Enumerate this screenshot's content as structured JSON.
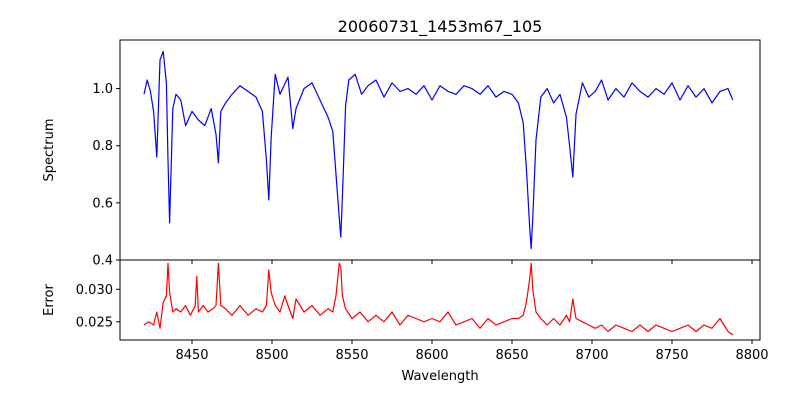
{
  "chart_data": [
    {
      "type": "line",
      "title": "20060731_1453m67_105",
      "xlabel": "",
      "ylabel": "Spectrum",
      "xlim": [
        8405,
        8805
      ],
      "ylim": [
        0.4,
        1.17
      ],
      "xticks": [
        8450,
        8500,
        8550,
        8600,
        8650,
        8700,
        8750,
        8800
      ],
      "yticks": [
        0.4,
        0.6,
        0.8,
        1.0
      ],
      "ytick_labels": [
        "0.4",
        "0.6",
        "0.8",
        "1.0"
      ],
      "series": [
        {
          "name": "Spectrum",
          "color": "#0000ff",
          "x": [
            8420,
            8422,
            8424,
            8426,
            8428,
            8430,
            8432,
            8434,
            8435,
            8436,
            8438,
            8440,
            8443,
            8446,
            8450,
            8454,
            8458,
            8462,
            8465,
            8466.5,
            8468,
            8471,
            8475,
            8480,
            8485,
            8490,
            8494,
            8496.5,
            8498,
            8499.5,
            8502,
            8505,
            8510,
            8513,
            8515,
            8520,
            8525,
            8530,
            8535,
            8538,
            8540,
            8542,
            8543,
            8544,
            8546,
            8548,
            8552,
            8556,
            8560,
            8565,
            8570,
            8575,
            8580,
            8585,
            8590,
            8595,
            8600,
            8605,
            8610,
            8615,
            8620,
            8625,
            8630,
            8635,
            8640,
            8645,
            8650,
            8654,
            8657,
            8659,
            8661,
            8662,
            8663,
            8665,
            8668,
            8672,
            8676,
            8680,
            8684,
            8686,
            8688,
            8690,
            8694,
            8698,
            8702,
            8706,
            8710,
            8715,
            8720,
            8725,
            8730,
            8735,
            8740,
            8745,
            8750,
            8755,
            8760,
            8765,
            8770,
            8775,
            8780,
            8785,
            8788
          ],
          "y": [
            0.98,
            1.03,
            0.99,
            0.92,
            0.76,
            1.1,
            1.13,
            1.02,
            0.75,
            0.53,
            0.93,
            0.98,
            0.96,
            0.87,
            0.92,
            0.89,
            0.87,
            0.93,
            0.84,
            0.74,
            0.92,
            0.95,
            0.98,
            1.01,
            0.99,
            0.97,
            0.92,
            0.75,
            0.61,
            0.83,
            1.05,
            0.98,
            1.04,
            0.86,
            0.93,
            1.0,
            1.02,
            0.96,
            0.9,
            0.85,
            0.7,
            0.55,
            0.48,
            0.62,
            0.94,
            1.03,
            1.05,
            0.98,
            1.01,
            1.03,
            0.97,
            1.02,
            0.99,
            1.0,
            0.98,
            1.01,
            0.96,
            1.01,
            0.99,
            0.98,
            1.01,
            1.0,
            0.98,
            1.01,
            0.97,
            0.99,
            0.98,
            0.95,
            0.88,
            0.72,
            0.52,
            0.44,
            0.55,
            0.82,
            0.97,
            1.0,
            0.95,
            0.98,
            0.9,
            0.8,
            0.69,
            0.91,
            1.02,
            0.97,
            0.99,
            1.03,
            0.96,
            1.0,
            0.97,
            1.02,
            0.99,
            0.97,
            1.0,
            0.98,
            1.02,
            0.96,
            1.01,
            0.97,
            1.0,
            0.95,
            0.99,
            1.0,
            0.96
          ]
        }
      ]
    },
    {
      "type": "line",
      "title": "",
      "xlabel": "Wavelength",
      "ylabel": "Error",
      "xlim": [
        8405,
        8805
      ],
      "ylim": [
        0.0222,
        0.0345
      ],
      "xticks": [
        8450,
        8500,
        8550,
        8600,
        8650,
        8700,
        8750,
        8800
      ],
      "xtick_labels": [
        "8450",
        "8500",
        "8550",
        "8600",
        "8650",
        "8700",
        "8750",
        "8800"
      ],
      "yticks": [
        0.025,
        0.03
      ],
      "ytick_labels": [
        "0.025",
        "0.030"
      ],
      "series": [
        {
          "name": "Error",
          "color": "#ff0000",
          "x": [
            8420,
            8423,
            8426,
            8428,
            8430,
            8432,
            8434,
            8435,
            8436,
            8438,
            8440,
            8443,
            8446,
            8449,
            8452,
            8453,
            8454,
            8457,
            8460,
            8463,
            8465,
            8466.5,
            8468,
            8471,
            8475,
            8480,
            8485,
            8490,
            8494,
            8496.5,
            8498,
            8499.5,
            8502,
            8505,
            8508,
            8510,
            8513,
            8515,
            8520,
            8525,
            8530,
            8535,
            8538,
            8540,
            8542,
            8543,
            8544,
            8546,
            8550,
            8555,
            8560,
            8565,
            8570,
            8575,
            8580,
            8585,
            8590,
            8595,
            8600,
            8605,
            8610,
            8615,
            8620,
            8625,
            8630,
            8635,
            8640,
            8645,
            8650,
            8654,
            8657,
            8659,
            8661,
            8662,
            8663,
            8665,
            8668,
            8672,
            8676,
            8680,
            8684,
            8686,
            8688,
            8690,
            8694,
            8698,
            8702,
            8706,
            8710,
            8715,
            8720,
            8725,
            8730,
            8735,
            8740,
            8745,
            8750,
            8755,
            8760,
            8765,
            8770,
            8775,
            8780,
            8785,
            8788
          ],
          "y": [
            0.0245,
            0.025,
            0.0245,
            0.0265,
            0.024,
            0.028,
            0.029,
            0.034,
            0.0295,
            0.0265,
            0.027,
            0.0265,
            0.0275,
            0.026,
            0.0275,
            0.032,
            0.0265,
            0.0275,
            0.0265,
            0.027,
            0.0275,
            0.034,
            0.0275,
            0.027,
            0.026,
            0.0275,
            0.026,
            0.027,
            0.0265,
            0.0275,
            0.033,
            0.0295,
            0.0275,
            0.0265,
            0.029,
            0.0275,
            0.0255,
            0.0285,
            0.0265,
            0.0275,
            0.026,
            0.027,
            0.0265,
            0.029,
            0.034,
            0.0335,
            0.029,
            0.027,
            0.0255,
            0.0265,
            0.025,
            0.026,
            0.025,
            0.0265,
            0.0245,
            0.026,
            0.0255,
            0.025,
            0.0255,
            0.025,
            0.0265,
            0.0245,
            0.025,
            0.0255,
            0.024,
            0.0255,
            0.0245,
            0.025,
            0.0255,
            0.0255,
            0.026,
            0.028,
            0.0315,
            0.034,
            0.03,
            0.0265,
            0.0255,
            0.0245,
            0.0255,
            0.0245,
            0.026,
            0.025,
            0.0285,
            0.0255,
            0.025,
            0.0245,
            0.024,
            0.0245,
            0.0235,
            0.0245,
            0.024,
            0.0235,
            0.0245,
            0.0235,
            0.0245,
            0.024,
            0.0235,
            0.024,
            0.0245,
            0.0235,
            0.0245,
            0.024,
            0.0255,
            0.0235,
            0.023
          ]
        }
      ]
    }
  ]
}
